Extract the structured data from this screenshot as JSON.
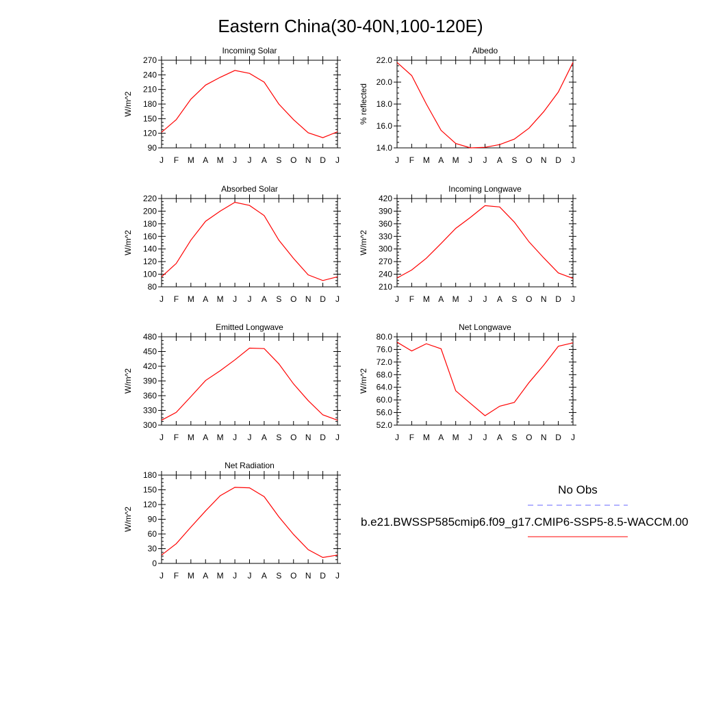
{
  "figure": {
    "title": "Eastern China(30-40N,100-120E)"
  },
  "months": [
    "J",
    "F",
    "M",
    "A",
    "M",
    "J",
    "J",
    "A",
    "S",
    "O",
    "N",
    "D",
    "J"
  ],
  "chart_data": [
    {
      "type": "line",
      "title": "Incoming Solar",
      "xlabel": "",
      "ylabel": "W/m^2",
      "ylim": [
        90,
        270
      ],
      "yticks": [
        "90",
        "120",
        "150",
        "180",
        "210",
        "240",
        "270"
      ],
      "series": [
        {
          "name": "b.e21.BWSSP585cmip6.f09_g17.CMIP6-SSP5-8.5-WACCM.00",
          "color": "#ff0000",
          "values": [
            122,
            148,
            190,
            219,
            235,
            249,
            243,
            225,
            180,
            148,
            121,
            111,
            123
          ]
        }
      ]
    },
    {
      "type": "line",
      "title": "Albedo",
      "xlabel": "",
      "ylabel": "% reflected",
      "ylim": [
        14.0,
        22.0
      ],
      "yticks": [
        "14.0",
        "16.0",
        "18.0",
        "20.0",
        "22.0"
      ],
      "series": [
        {
          "name": "b.e21.BWSSP585cmip6.f09_g17.CMIP6-SSP5-8.5-WACCM.00",
          "color": "#ff0000",
          "values": [
            21.8,
            20.6,
            18.0,
            15.6,
            14.4,
            14.0,
            14.05,
            14.3,
            14.8,
            15.8,
            17.3,
            19.1,
            21.8
          ]
        }
      ]
    },
    {
      "type": "line",
      "title": "Absorbed Solar",
      "xlabel": "",
      "ylabel": "W/m^2",
      "ylim": [
        80,
        220
      ],
      "yticks": [
        "80",
        "100",
        "120",
        "140",
        "160",
        "180",
        "200",
        "220"
      ],
      "series": [
        {
          "name": "b.e21.BWSSP585cmip6.f09_g17.CMIP6-SSP5-8.5-WACCM.00",
          "color": "#ff0000",
          "values": [
            96,
            117,
            154,
            184,
            200,
            214,
            209,
            193,
            154,
            125,
            99,
            90,
            96
          ]
        }
      ]
    },
    {
      "type": "line",
      "title": "Incoming Longwave",
      "xlabel": "",
      "ylabel": "W/m^2",
      "ylim": [
        210,
        420
      ],
      "yticks": [
        "210",
        "240",
        "270",
        "300",
        "330",
        "360",
        "390",
        "420"
      ],
      "series": [
        {
          "name": "b.e21.BWSSP585cmip6.f09_g17.CMIP6-SSP5-8.5-WACCM.00",
          "color": "#ff0000",
          "values": [
            231,
            250,
            278,
            313,
            349,
            375,
            403,
            400,
            364,
            317,
            279,
            243,
            230
          ]
        }
      ]
    },
    {
      "type": "line",
      "title": "Emitted Longwave",
      "xlabel": "",
      "ylabel": "W/m^2",
      "ylim": [
        300,
        480
      ],
      "yticks": [
        "300",
        "330",
        "360",
        "390",
        "420",
        "450",
        "480"
      ],
      "series": [
        {
          "name": "b.e21.BWSSP585cmip6.f09_g17.CMIP6-SSP5-8.5-WACCM.00",
          "color": "#ff0000",
          "values": [
            310,
            326,
            358,
            391,
            411,
            433,
            457,
            456,
            425,
            384,
            350,
            321,
            310
          ]
        }
      ]
    },
    {
      "type": "line",
      "title": "Net Longwave",
      "xlabel": "",
      "ylabel": "W/m^2",
      "ylim": [
        52.0,
        80.0
      ],
      "yticks": [
        "52.0",
        "56.0",
        "60.0",
        "64.0",
        "68.0",
        "72.0",
        "76.0",
        "80.0"
      ],
      "series": [
        {
          "name": "b.e21.BWSSP585cmip6.f09_g17.CMIP6-SSP5-8.5-WACCM.00",
          "color": "#ff0000",
          "values": [
            78.3,
            75.5,
            77.8,
            76.2,
            62.9,
            58.9,
            55.0,
            58.0,
            59.2,
            65.5,
            71.0,
            77.0,
            78.1
          ]
        }
      ]
    },
    {
      "type": "line",
      "title": "Net Radiation",
      "xlabel": "",
      "ylabel": "W/m^2",
      "ylim": [
        0,
        180
      ],
      "yticks": [
        "0",
        "30",
        "60",
        "90",
        "120",
        "150",
        "180"
      ],
      "series": [
        {
          "name": "b.e21.BWSSP585cmip6.f09_g17.CMIP6-SSP5-8.5-WACCM.00",
          "color": "#ff0000",
          "values": [
            17,
            40,
            74,
            107,
            138,
            155,
            154,
            136,
            95,
            59,
            28,
            12,
            17
          ]
        }
      ]
    }
  ],
  "legend": [
    {
      "label": "No Obs",
      "color": "#6666ff",
      "dash": true
    },
    {
      "label": "b.e21.BWSSP585cmip6.f09_g17.CMIP6-SSP5-8.5-WACCM.00",
      "color": "#ff0000",
      "dash": false
    }
  ]
}
